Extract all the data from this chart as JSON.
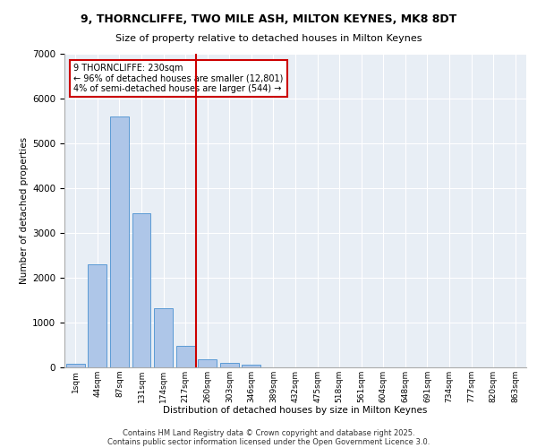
{
  "title_line1": "9, THORNCLIFFE, TWO MILE ASH, MILTON KEYNES, MK8 8DT",
  "title_line2": "Size of property relative to detached houses in Milton Keynes",
  "xlabel": "Distribution of detached houses by size in Milton Keynes",
  "ylabel": "Number of detached properties",
  "categories": [
    "1sqm",
    "44sqm",
    "87sqm",
    "131sqm",
    "174sqm",
    "217sqm",
    "260sqm",
    "303sqm",
    "346sqm",
    "389sqm",
    "432sqm",
    "475sqm",
    "518sqm",
    "561sqm",
    "604sqm",
    "648sqm",
    "691sqm",
    "734sqm",
    "777sqm",
    "820sqm",
    "863sqm"
  ],
  "values": [
    80,
    2300,
    5600,
    3450,
    1320,
    480,
    175,
    110,
    60,
    0,
    0,
    0,
    0,
    0,
    0,
    0,
    0,
    0,
    0,
    0,
    0
  ],
  "bar_color": "#aec6e8",
  "bar_edge_color": "#5b9bd5",
  "vline_index": 5.5,
  "vline_color": "#cc0000",
  "annotation_line1": "9 THORNCLIFFE: 230sqm",
  "annotation_line2": "← 96% of detached houses are smaller (12,801)",
  "annotation_line3": "4% of semi-detached houses are larger (544) →",
  "annotation_box_color": "#cc0000",
  "ylim": [
    0,
    7000
  ],
  "yticks": [
    0,
    1000,
    2000,
    3000,
    4000,
    5000,
    6000,
    7000
  ],
  "footnote1": "Contains HM Land Registry data © Crown copyright and database right 2025.",
  "footnote2": "Contains public sector information licensed under the Open Government Licence 3.0.",
  "bg_color": "#e8eef5",
  "fig_bg_color": "#ffffff"
}
